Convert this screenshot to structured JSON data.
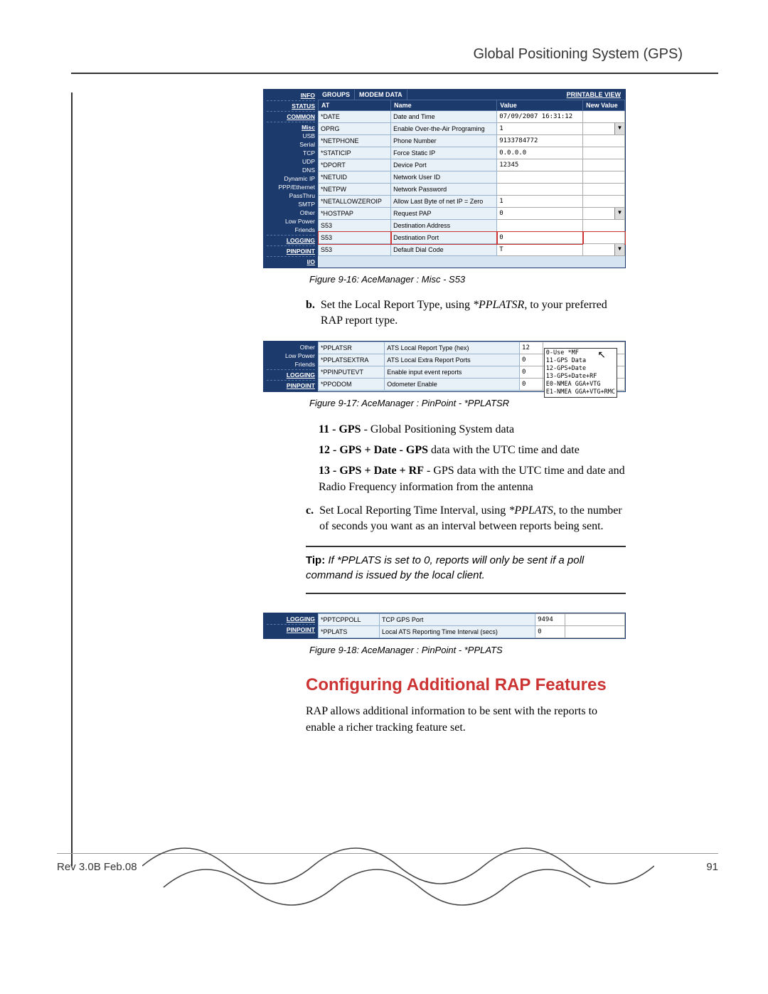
{
  "page": {
    "header": "Global Positioning System (GPS)",
    "rev": "Rev 3.0B  Feb.08",
    "pageno": "91"
  },
  "panel1": {
    "groups_header": "GROUPS",
    "modem_data": "MODEM DATA",
    "printable": "PRINTABLE VIEW",
    "sidebar": [
      {
        "label": "INFO",
        "bold": true
      },
      {
        "label": "STATUS",
        "bold": true
      },
      {
        "label": "COMMON",
        "bold": true
      },
      {
        "label": "Misc",
        "bold": true
      },
      {
        "label": "USB",
        "bold": false
      },
      {
        "label": "Serial",
        "bold": false
      },
      {
        "label": "TCP",
        "bold": false
      },
      {
        "label": "UDP",
        "bold": false
      },
      {
        "label": "DNS",
        "bold": false
      },
      {
        "label": "Dynamic IP",
        "bold": false
      },
      {
        "label": "PPP/Ethernet",
        "bold": false
      },
      {
        "label": "PassThru",
        "bold": false
      },
      {
        "label": "SMTP",
        "bold": false
      },
      {
        "label": "Other",
        "bold": false
      },
      {
        "label": "Low Power",
        "bold": false
      },
      {
        "label": "Friends",
        "bold": false
      },
      {
        "label": "LOGGING",
        "bold": true
      },
      {
        "label": "PINPOINT",
        "bold": true
      },
      {
        "label": "I/O",
        "bold": true
      }
    ],
    "cols": [
      "AT",
      "Name",
      "Value",
      "New Value"
    ],
    "rows": [
      {
        "at": "*DATE",
        "name": "Date and Time",
        "value": "07/09/2007 16:31:12",
        "dd": false
      },
      {
        "at": "OPRG",
        "name": "Enable Over-the-Air Programing",
        "value": "1",
        "dd": true
      },
      {
        "at": "*NETPHONE",
        "name": "Phone Number",
        "value": "9133784772",
        "dd": false
      },
      {
        "at": "*STATICIP",
        "name": "Force Static IP",
        "value": "0.0.0.0",
        "dd": false
      },
      {
        "at": "*DPORT",
        "name": "Device Port",
        "value": "12345",
        "dd": false
      },
      {
        "at": "*NETUID",
        "name": "Network User ID",
        "value": "",
        "dd": false
      },
      {
        "at": "*NETPW",
        "name": "Network Password",
        "value": "",
        "dd": false
      },
      {
        "at": "*NETALLOWZEROIP",
        "name": "Allow Last Byte of net IP = Zero",
        "value": "1",
        "dd": false
      },
      {
        "at": "*HOSTPAP",
        "name": "Request PAP",
        "value": "0",
        "dd": true
      },
      {
        "at": "S53",
        "name": "Destination Address",
        "value": "",
        "dd": false
      },
      {
        "at": "S53",
        "name": "Destination Port",
        "value": "0",
        "dd": false,
        "highlight": true
      },
      {
        "at": "S53",
        "name": "Default Dial Code",
        "value": "T",
        "dd": true
      }
    ],
    "caption": "Figure 9-16: AceManager : Misc - S53"
  },
  "step_b": {
    "marker": "b.",
    "text": "Set the Local Report Type, using *PPLATSR, to your preferred RAP report type."
  },
  "panel2": {
    "sidebar": [
      {
        "label": "Other",
        "bold": false
      },
      {
        "label": "Low Power",
        "bold": false
      },
      {
        "label": "Friends",
        "bold": false
      },
      {
        "label": "LOGGING",
        "bold": true
      },
      {
        "label": "PINPOINT",
        "bold": true
      }
    ],
    "rows": [
      {
        "at": "*PPLATSR",
        "name": "ATS Local Report Type (hex)",
        "value": "12"
      },
      {
        "at": "*PPLATSEXTRA",
        "name": "ATS Local Extra Report Ports",
        "value": "0"
      },
      {
        "at": "*PPINPUTEVT",
        "name": "Enable input event reports",
        "value": "0"
      },
      {
        "at": "*PPODOM",
        "name": "Odometer Enable",
        "value": "0"
      }
    ],
    "legend": [
      "0-Use *MF",
      "11-GPS Data",
      "12-GPS+Date",
      "13-GPS+Date+RF",
      "E0-NMEA GGA+VTG",
      "E1-NMEA GGA+VTG+RMC"
    ],
    "caption": "Figure 9-17: AceManager : PinPoint - *PPLATSR"
  },
  "options": {
    "o11": {
      "b": "11 - GPS",
      "t": " - Global Positioning System data"
    },
    "o12": {
      "b": "12 - GPS + Date - GPS",
      "t": " data with the UTC time and date"
    },
    "o13": {
      "b": "13 - GPS + Date + RF",
      "t": " - GPS data with the UTC time and date and Radio Frequency information from the antenna"
    }
  },
  "step_c": {
    "marker": "c.",
    "text": "Set Local Reporting Time Interval, using *PPLATS, to the number of seconds you want as an interval between reports being sent."
  },
  "tip": {
    "lead": "Tip:",
    "text": " If *PPLATS is set to 0, reports will only be sent if a poll command is issued by the local client."
  },
  "panel3": {
    "sidebar": [
      {
        "label": "LOGGING",
        "bold": true
      },
      {
        "label": "PINPOINT",
        "bold": true
      }
    ],
    "rows": [
      {
        "at": "*PPTCPPOLL",
        "name": "TCP GPS Port",
        "value": "9494"
      },
      {
        "at": "*PPLATS",
        "name": "Local ATS Reporting Time Interval (secs)",
        "value": "0"
      }
    ],
    "caption": "Figure 9-18: AceManager : PinPoint - *PPLATS"
  },
  "section_heading": "Configuring Additional RAP Features",
  "section_text": "RAP allows additional information to be sent with the reports to enable a richer tracking feature set."
}
